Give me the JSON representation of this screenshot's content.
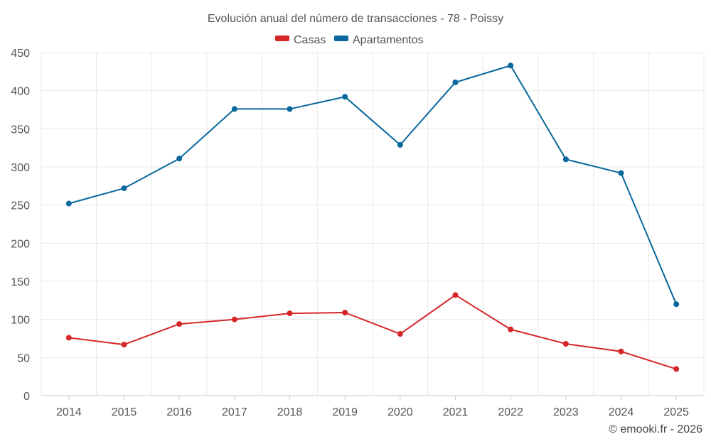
{
  "chart_data": {
    "type": "line",
    "title": "Evolución anual del número de transacciones - 78 - Poissy",
    "categories": [
      "2014",
      "2015",
      "2016",
      "2017",
      "2018",
      "2019",
      "2020",
      "2021",
      "2022",
      "2023",
      "2024",
      "2025"
    ],
    "ylim": [
      0,
      450
    ],
    "yticks": [
      0,
      50,
      100,
      150,
      200,
      250,
      300,
      350,
      400,
      450
    ],
    "grid": true,
    "legend_position": "top-center",
    "series": [
      {
        "name": "Casas",
        "color": "#d62728",
        "values": [
          76,
          67,
          94,
          100,
          108,
          109,
          81,
          132,
          87,
          68,
          58,
          35
        ]
      },
      {
        "name": "Apartamentos",
        "color": "#08679d",
        "values": [
          252,
          272,
          311,
          376,
          376,
          392,
          329,
          411,
          433,
          310,
          292,
          120
        ]
      }
    ],
    "credit": "© emooki.fr - 2026"
  }
}
